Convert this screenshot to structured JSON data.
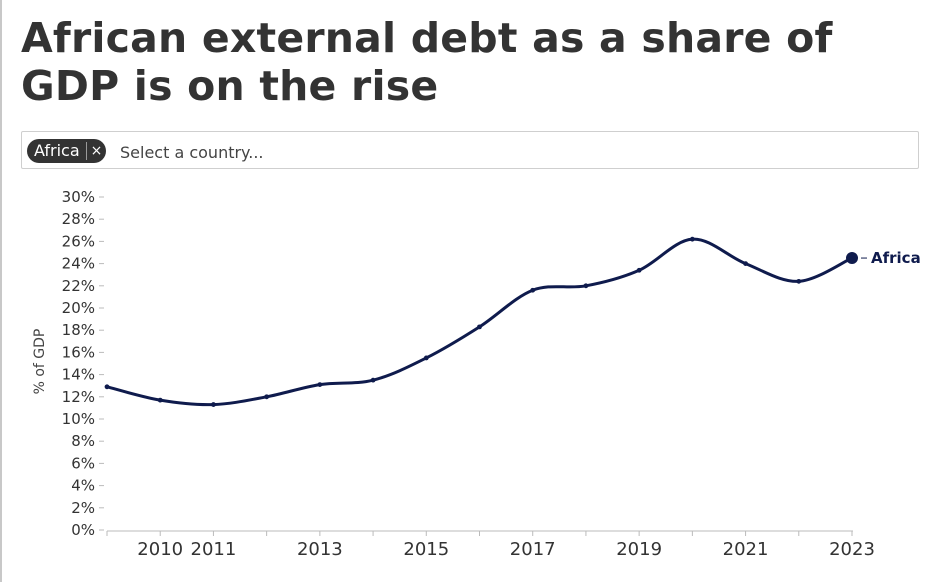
{
  "title": "African external debt as a share of GDP is on the rise",
  "selector": {
    "chip_label": "Africa",
    "chip_remove_glyph": "×",
    "placeholder": "Select a country..."
  },
  "colors": {
    "series": "#0f1b4d",
    "text": "#333333",
    "axis": "#bbbbbb"
  },
  "chart_data": {
    "type": "line",
    "title": "African external debt as a share of GDP is on the rise",
    "xlabel": "",
    "ylabel": "% of GDP",
    "xlim": [
      2009,
      2023
    ],
    "ylim": [
      0,
      30
    ],
    "yticks": [
      0,
      2,
      4,
      6,
      8,
      10,
      12,
      14,
      16,
      18,
      20,
      22,
      24,
      26,
      28,
      30
    ],
    "ytick_labels": [
      "0%",
      "2%",
      "4%",
      "6%",
      "8%",
      "10%",
      "12%",
      "14%",
      "16%",
      "18%",
      "20%",
      "22%",
      "24%",
      "26%",
      "28%",
      "30%"
    ],
    "xticks": [
      2009,
      2010,
      2011,
      2012,
      2013,
      2014,
      2015,
      2016,
      2017,
      2018,
      2019,
      2020,
      2021,
      2022,
      2023
    ],
    "xtick_labels": [
      "",
      "2010",
      "2011",
      "",
      "2013",
      "",
      "2015",
      "",
      "2017",
      "",
      "2019",
      "",
      "2021",
      "",
      "2023"
    ],
    "grid": false,
    "series": [
      {
        "name": "Africa",
        "x": [
          2009,
          2010,
          2011,
          2012,
          2013,
          2014,
          2015,
          2016,
          2017,
          2018,
          2019,
          2020,
          2021,
          2022,
          2023
        ],
        "values": [
          12.9,
          11.7,
          11.3,
          12.0,
          13.1,
          13.5,
          15.5,
          18.3,
          21.6,
          22.0,
          23.4,
          26.2,
          24.0,
          22.4,
          24.5
        ]
      }
    ]
  }
}
